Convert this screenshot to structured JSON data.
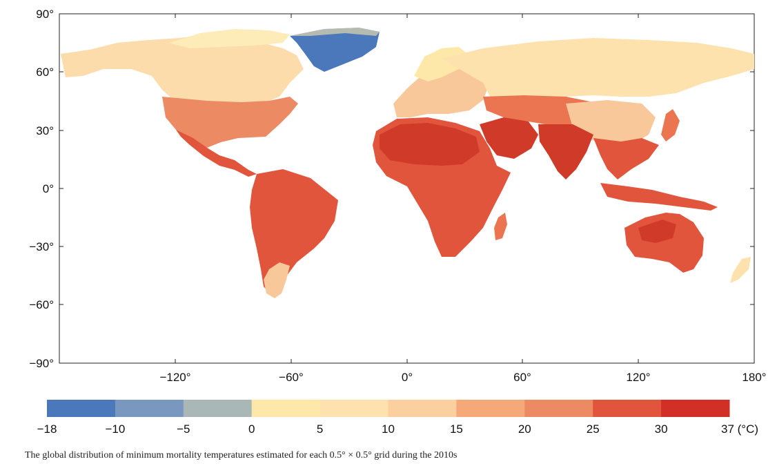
{
  "map": {
    "y_ticks": [
      "90°",
      "60°",
      "30°",
      "0°",
      "−30°",
      "−60°",
      "−90°"
    ],
    "x_ticks": [
      "−120°",
      "−60°",
      "0°",
      "60°",
      "120°",
      "180°"
    ],
    "colors": {
      "deep_red": "#d03a28",
      "red": "#e2553d",
      "orange_red": "#ea7550",
      "orange": "#f4a676",
      "peach": "#f8c79a",
      "light": "#fbdfae",
      "cream": "#fdebb8",
      "grey_blue": "#7a97bf",
      "blue": "#4a78bb"
    }
  },
  "colorbar": {
    "colors": [
      "#4a78bb",
      "#7a97bf",
      "#a9b7b6",
      "#fde8a9",
      "#fde2ad",
      "#fbcf9e",
      "#f5a978",
      "#ec8a63",
      "#e2553d",
      "#d22f26"
    ],
    "labels": [
      "−18",
      "−10",
      "−5",
      "0",
      "5",
      "10",
      "15",
      "20",
      "25",
      "30",
      "37 (°C)"
    ]
  },
  "caption": "The global distribution of minimum mortality temperatures estimated for each 0.5° × 0.5° grid during the 2010s"
}
